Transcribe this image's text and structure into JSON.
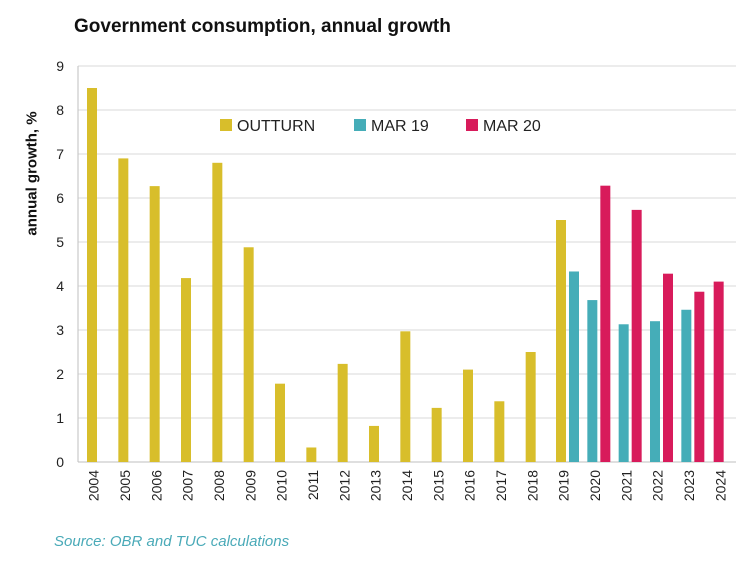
{
  "chart_data": {
    "type": "bar",
    "title": "Government consumption,  annual growth",
    "ylabel": "annual growth, %",
    "xlabel": "",
    "ylim": [
      0,
      9
    ],
    "yticks": [
      0,
      1,
      2,
      3,
      4,
      5,
      6,
      7,
      8,
      9
    ],
    "grid": true,
    "legend_position": "top-center",
    "categories": [
      "2004",
      "2005",
      "2006",
      "2007",
      "2008",
      "2009",
      "2010",
      "2011",
      "2012",
      "2013",
      "2014",
      "2015",
      "2016",
      "2017",
      "2018",
      "2019",
      "2020",
      "2021",
      "2022",
      "2023",
      "2024"
    ],
    "series": [
      {
        "name": "OUTTURN",
        "color": "#d8be2b",
        "values": [
          8.5,
          6.9,
          6.27,
          4.18,
          6.8,
          4.88,
          1.78,
          0.33,
          2.23,
          0.82,
          2.97,
          1.23,
          2.1,
          1.38,
          2.5,
          5.5,
          null,
          null,
          null,
          null,
          null
        ]
      },
      {
        "name": "MAR 19",
        "color": "#45adb8",
        "values": [
          null,
          null,
          null,
          null,
          null,
          null,
          null,
          null,
          null,
          null,
          null,
          null,
          null,
          null,
          null,
          4.33,
          3.68,
          3.13,
          3.2,
          3.46,
          null
        ]
      },
      {
        "name": "MAR 20",
        "color": "#d81b5b",
        "values": [
          null,
          null,
          null,
          null,
          null,
          null,
          null,
          null,
          null,
          null,
          null,
          null,
          null,
          null,
          null,
          null,
          6.28,
          5.73,
          4.28,
          3.87,
          4.1
        ]
      }
    ]
  },
  "source": "Source: OBR and TUC calculations"
}
